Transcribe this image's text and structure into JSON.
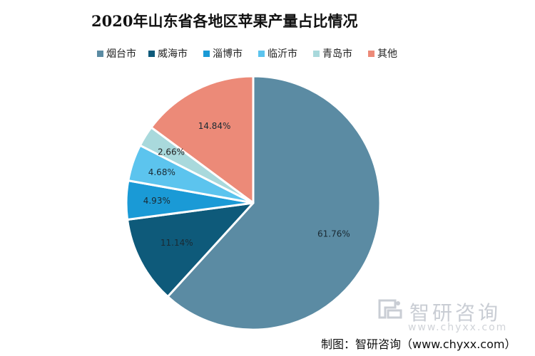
{
  "chart_data": {
    "type": "pie",
    "title": "2020年山东省各地区苹果产量占比情况",
    "categories": [
      "烟台市",
      "威海市",
      "淄博市",
      "临沂市",
      "青岛市",
      "其他"
    ],
    "values": [
      61.76,
      11.14,
      4.93,
      4.68,
      2.66,
      14.84
    ],
    "labels": [
      "61.76%",
      "11.14%",
      "4.93%",
      "4.68%",
      "2.66%",
      "14.84%"
    ],
    "colors": [
      "#5b8ba3",
      "#0e5a7a",
      "#1a9ad6",
      "#5cc4ee",
      "#a9d9dc",
      "#ec8a78"
    ],
    "label_colors": [
      "#1a2a33",
      "#1a2a33",
      "#1a2a33",
      "#1a2a33",
      "#222222",
      "#1a2a33"
    ],
    "legend_placement": "top",
    "start_angle_deg": 0,
    "direction": "clockwise"
  },
  "watermark": {
    "brand": "智研咨询",
    "url": "www.chyxx.com"
  },
  "source": "制图：智研咨询（www.chyxx.com）"
}
